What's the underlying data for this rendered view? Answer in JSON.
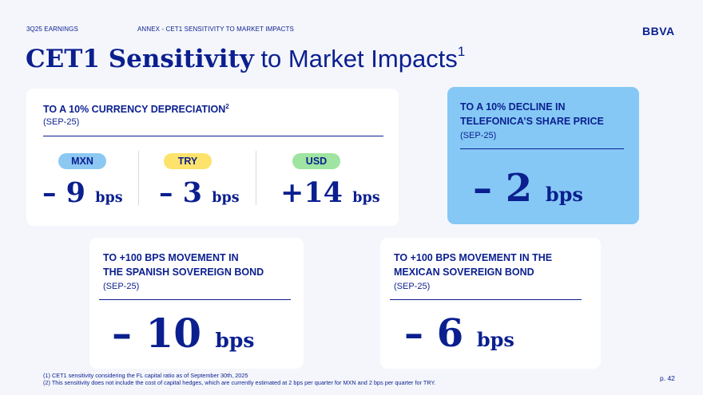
{
  "header": {
    "section": "3Q25 EARNINGS",
    "subsection": "ANNEX - CET1 SENSITIVITY TO MARKET IMPACTS",
    "logo": "BBVA"
  },
  "title": {
    "bold": "CET1 Sensitivity",
    "rest": " to Market Impacts",
    "sup": "1"
  },
  "currency": {
    "title": "TO A 10% CURRENCY DEPRECIATION",
    "title_sup": "2",
    "date": "(SEP-25)",
    "items": [
      {
        "label": "MXN",
        "value": "– 9",
        "unit": "bps",
        "color": "#8cc8f2"
      },
      {
        "label": "TRY",
        "value": "– 3",
        "unit": "bps",
        "color": "#fde36b"
      },
      {
        "label": "USD",
        "value": "+14",
        "unit": "bps",
        "color": "#9fe4a0"
      }
    ]
  },
  "telefonica": {
    "title_line1": "TO A 10% DECLINE IN",
    "title_line2": "TELEFONICA’S SHARE PRICE",
    "date": "(SEP-25)",
    "value": "– 2",
    "unit": "bps"
  },
  "spanish": {
    "title_line1": "TO +100 BPS MOVEMENT IN",
    "title_line2": "THE SPANISH SOVEREIGN BOND",
    "date": "(SEP-25)",
    "value": "– 10",
    "unit": "bps"
  },
  "mexican": {
    "title_line1": "TO +100 BPS MOVEMENT IN THE",
    "title_line2": "MEXICAN SOVEREIGN BOND",
    "date": "(SEP-25)",
    "value": "– 6",
    "unit": "bps"
  },
  "footnotes": {
    "note1": "(1) CET1 sensitivity considering the FL capital ratio as of September 30th, 2025",
    "note2": "(2) This sensitivity does not include the cost of capital hedges, which are currently estimated at 2 bps per quarter for MXN and 2 bps per quarter for TRY."
  },
  "page": "p. 42"
}
